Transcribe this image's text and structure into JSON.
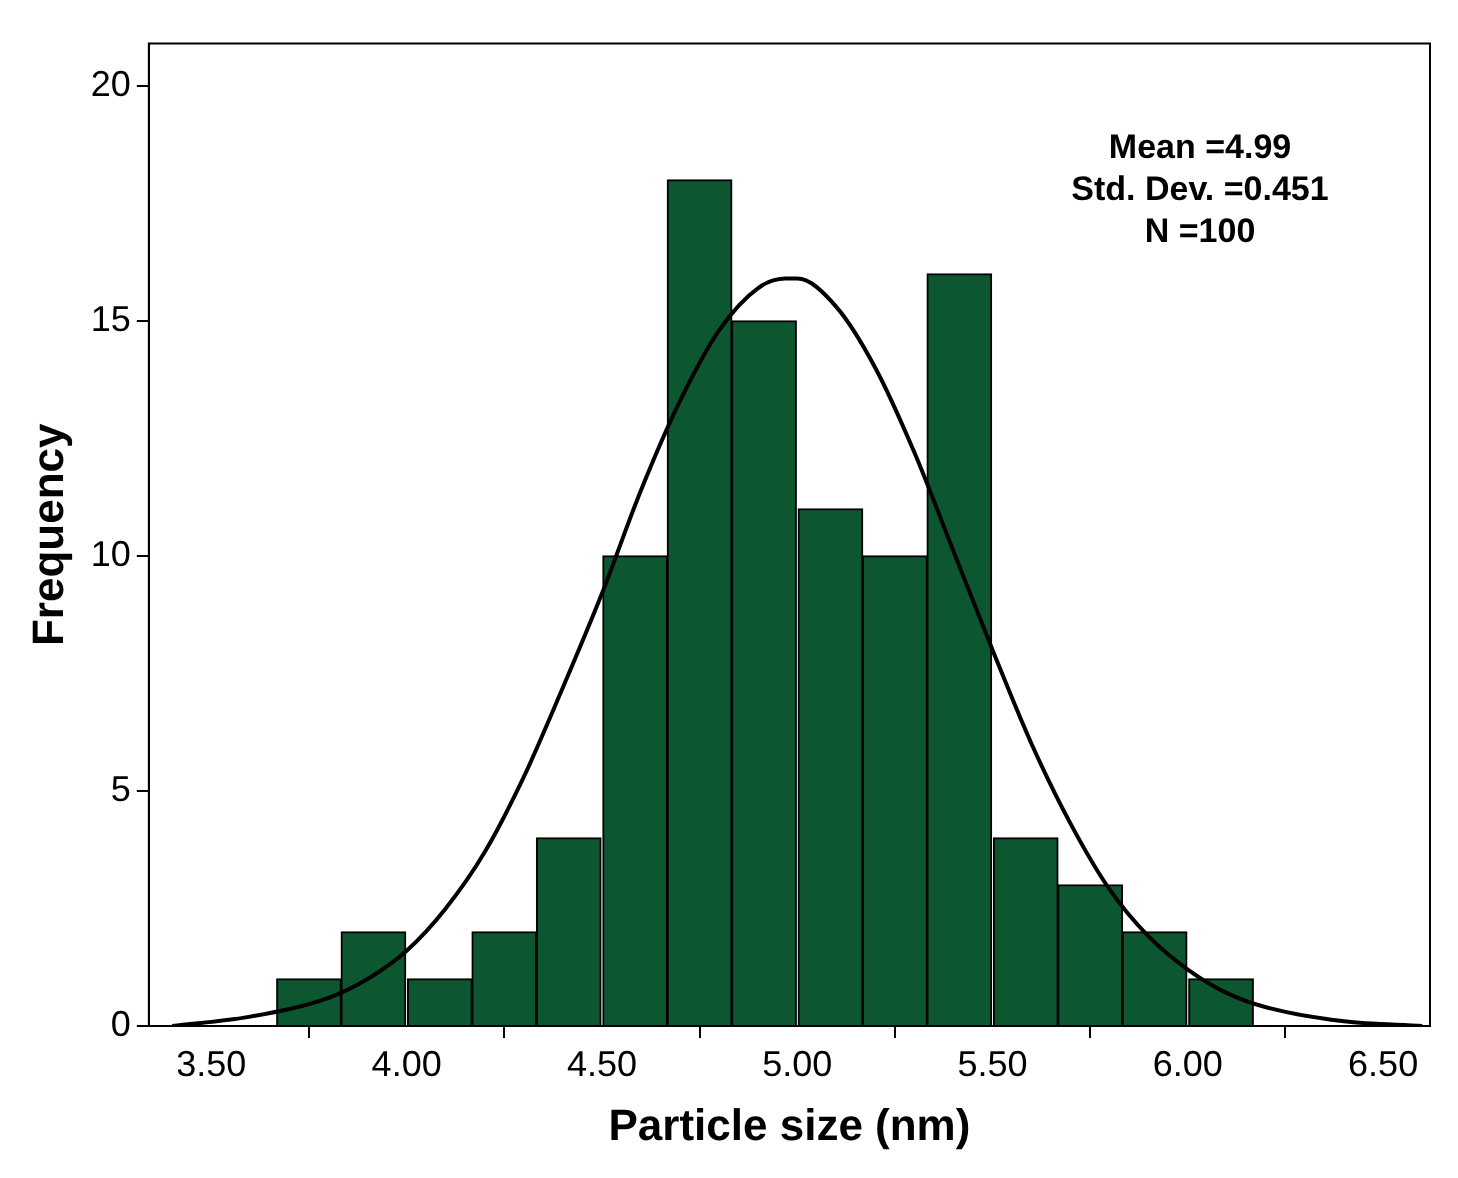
{
  "chart_data": {
    "type": "histogram",
    "xlabel": "Particle size (nm)",
    "ylabel": "Frequency",
    "bins": [
      3.67,
      3.83,
      4.0,
      4.17,
      4.33,
      4.5,
      4.67,
      4.83,
      5.0,
      5.17,
      5.33,
      5.5,
      5.67,
      5.83,
      6.0,
      6.17
    ],
    "values": [
      1,
      2,
      1,
      2,
      4,
      10,
      18,
      15,
      11,
      10,
      16,
      4,
      3,
      2,
      1
    ],
    "color": "#0d5730",
    "series": [
      {
        "type": "line",
        "color": "#000000",
        "x": [
          3.4,
          3.6,
          3.8,
          3.9,
          4.0,
          4.1,
          4.2,
          4.3,
          4.4,
          4.5,
          4.6,
          4.7,
          4.8,
          4.9,
          4.97,
          5.0,
          5.1,
          5.2,
          5.3,
          5.4,
          5.5,
          5.6,
          5.7,
          5.8,
          5.9,
          6.0,
          6.1,
          6.2,
          6.4,
          6.6
        ],
        "values": [
          0.0,
          0.2,
          0.6,
          1.0,
          1.6,
          2.5,
          3.7,
          5.3,
          7.2,
          9.2,
          11.4,
          13.3,
          14.8,
          15.7,
          15.9,
          15.9,
          15.3,
          14.0,
          12.2,
          10.1,
          8.0,
          6.0,
          4.3,
          2.9,
          1.9,
          1.2,
          0.7,
          0.4,
          0.1,
          0.0
        ]
      }
    ],
    "annotations": [
      "Mean =4.99",
      "Std. Dev. =0.451",
      "N =100"
    ],
    "xlim": [
      3.34,
      6.62
    ],
    "xticks": [
      {
        "value": 3.5,
        "label": "3.50"
      },
      {
        "value": 4.0,
        "label": "4.00"
      },
      {
        "value": 4.5,
        "label": "4.50"
      },
      {
        "value": 5.0,
        "label": "5.00"
      },
      {
        "value": 5.5,
        "label": "5.50"
      },
      {
        "value": 6.0,
        "label": "6.00"
      },
      {
        "value": 6.5,
        "label": "6.50"
      }
    ],
    "ylim": [
      0,
      20.9
    ],
    "yticks": [
      0,
      5,
      10,
      15,
      20
    ],
    "grid": false,
    "legend": false,
    "marker": "none",
    "line_style": "solid"
  }
}
